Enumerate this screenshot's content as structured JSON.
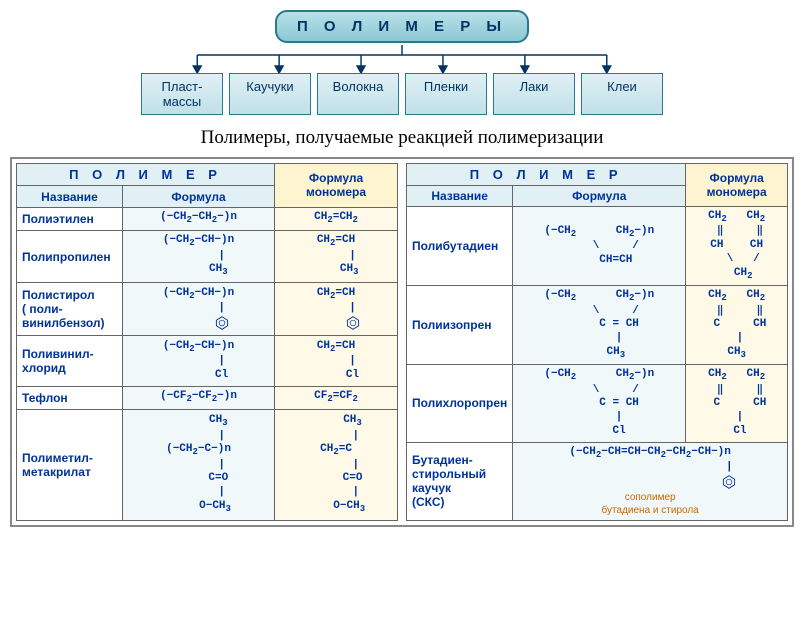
{
  "hierarchy": {
    "root": "П О Л И М Е Р Ы",
    "children": [
      "Пласт-\nмассы",
      "Каучуки",
      "Волокна",
      "Пленки",
      "Лаки",
      "Клеи"
    ]
  },
  "section_title": "Полимеры, получаемые реакцией полимеризации",
  "colors": {
    "box_border": "#2a7a8a",
    "box_bg_top": "#b8e0e8",
    "box_bg_bot": "#8cc8d4",
    "child_bg": "#d0e8ee",
    "header_bg": "#e0f0f4",
    "mono_bg": "#fff4d0",
    "formula_bg": "#f0f8fa",
    "mono_cell_bg": "#fffae8",
    "text": "#003399",
    "table_border": "#666",
    "note": "#cc6600"
  },
  "headers": {
    "polymer": "П О Л И М Е Р",
    "name": "Название",
    "formula": "Формула",
    "monomer": "Формула мономера"
  },
  "left_table": [
    {
      "name": "Полиэтилен",
      "formula": "(−CH₂−CH₂−)n",
      "monomer": "CH₂=CH₂",
      "benzene": false
    },
    {
      "name": "Полипропилен",
      "formula": "(−CH₂−CH−)n\n       |\n      CH₃",
      "monomer": "CH₂=CH\n     |\n    CH₃",
      "benzene": false
    },
    {
      "name": "Полистирол\n( поли-\nвинилбензол)",
      "formula": "(−CH₂−CH−)n\n       |\n       ⌬",
      "monomer": "CH₂=CH\n     |\n     ⌬",
      "benzene": true
    },
    {
      "name": "Поливинил-\nхлорид",
      "formula": "(−CH₂−CH−)n\n       |\n       Cl",
      "monomer": "CH₂=CH\n     |\n     Cl",
      "benzene": false
    },
    {
      "name": "Тефлон",
      "formula": "(−CF₂−CF₂−)n",
      "monomer": "CF₂=CF₂",
      "benzene": false
    },
    {
      "name": "Полиметил-\nметакрилат",
      "formula": "      CH₃\n       |\n(−CH₂−C−)n\n       |\n      C=O\n       |\n     O−CH₃",
      "monomer": "     CH₃\n      |\nCH₂=C\n      |\n     C=O\n      |\n    O−CH₃",
      "benzene": false
    }
  ],
  "right_table": [
    {
      "name": "Полибутадиен",
      "formula": "(−CH₂      CH₂−)n\n     \\     /\n     CH=CH",
      "monomer": "CH₂   CH₂\n ‖     ‖\nCH    CH\n  \\   /\n  CH₂",
      "benzene": false
    },
    {
      "name": "Полиизопрен",
      "formula": "(−CH₂      CH₂−)n\n     \\     /\n      C = CH\n      |\n     CH₃",
      "monomer": "CH₂   CH₂\n ‖     ‖\n C     CH\n |\nCH₃",
      "benzene": false
    },
    {
      "name": "Полихлоропрен",
      "formula": "(−CH₂      CH₂−)n\n     \\     /\n      C = CH\n      |\n      Cl",
      "monomer": "CH₂   CH₂\n ‖     ‖\n C     CH\n |\n Cl",
      "benzene": false
    },
    {
      "name": "Бутадиен-\nстирольный\nкаучук\n(СКС)",
      "formula": "(−CH₂−CH=CH−CH₂−CH₂−CH−)n\n                        |\n                        ⌬",
      "monomer": "",
      "note": "сополимер\nбутадиена и стирола",
      "benzene": true,
      "span_mono": true
    }
  ]
}
